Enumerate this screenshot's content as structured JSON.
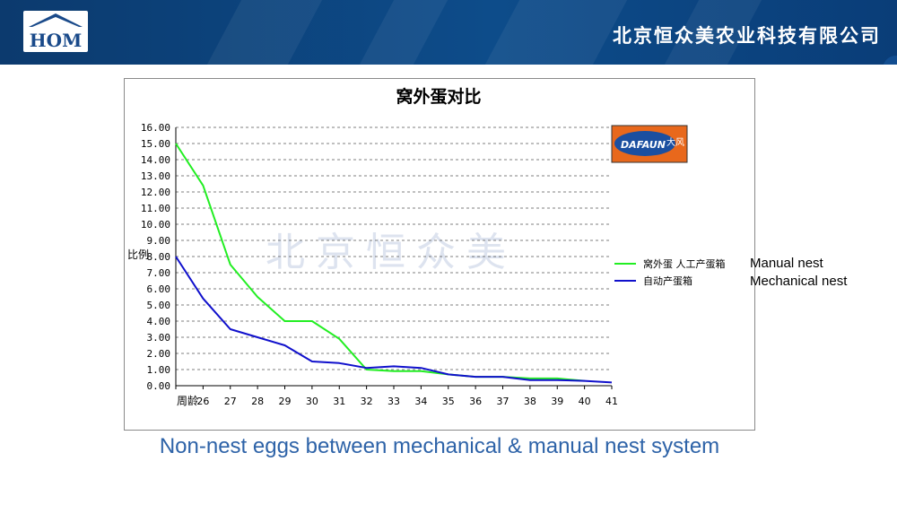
{
  "header": {
    "logo_text": "HOM",
    "company_name": "北京恒众美农业科技有限公司",
    "brand_color": "#0d4c8a"
  },
  "watermark": "北京恒众美",
  "badge": {
    "text": "DAFAUN",
    "accent_text": "大风"
  },
  "caption": "Non-nest eggs between mechanical & manual nest system",
  "legend_english": [
    "Manual nest",
    "Mechanical nest"
  ],
  "chart_data": {
    "type": "line",
    "title": "窝外蛋对比",
    "xlabel": "周龄",
    "ylabel": "比例",
    "x": [
      25,
      26,
      27,
      28,
      29,
      30,
      31,
      32,
      33,
      34,
      35,
      36,
      37,
      38,
      39,
      40,
      41
    ],
    "x_tick_labels": [
      "",
      "26",
      "27",
      "28",
      "29",
      "30",
      "31",
      "32",
      "33",
      "34",
      "35",
      "36",
      "37",
      "38",
      "39",
      "40",
      "41"
    ],
    "ylim": [
      0,
      16
    ],
    "y_ticks": [
      "0.00",
      "1.00",
      "2.00",
      "3.00",
      "4.00",
      "5.00",
      "6.00",
      "7.00",
      "8.00",
      "9.00",
      "10.00",
      "11.00",
      "12.00",
      "13.00",
      "14.00",
      "15.00",
      "16.00"
    ],
    "grid": true,
    "legend_position": "right",
    "series": [
      {
        "name": "窝外蛋 人工产蛋箱",
        "color": "#22ee22",
        "values": [
          15.0,
          12.4,
          7.5,
          5.5,
          4.0,
          4.0,
          2.9,
          1.0,
          0.9,
          0.9,
          0.7,
          0.55,
          0.55,
          0.45,
          0.45,
          0.3,
          null
        ]
      },
      {
        "name": "自动产蛋箱",
        "color": "#1010cc",
        "values": [
          8.0,
          5.4,
          3.5,
          3.0,
          2.5,
          1.5,
          1.4,
          1.1,
          1.2,
          1.1,
          0.7,
          0.55,
          0.55,
          0.35,
          0.35,
          0.3,
          0.2
        ]
      }
    ]
  }
}
